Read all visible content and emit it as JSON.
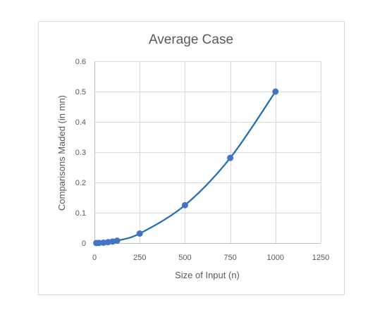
{
  "chart_data": {
    "type": "scatter",
    "title": "Average Case",
    "xlabel": "Size of Input (n)",
    "ylabel": "Comparisons Maded (in mn)",
    "xlim": [
      0,
      1250
    ],
    "ylim": [
      0,
      0.6
    ],
    "x_ticks": [
      "0",
      "250",
      "500",
      "750",
      "1000",
      "1250"
    ],
    "y_ticks": [
      "0",
      "0.1",
      "0.2",
      "0.3",
      "0.4",
      "0.5",
      "0.6"
    ],
    "x_tick_values": [
      0,
      250,
      500,
      750,
      1000,
      1250
    ],
    "y_tick_values": [
      0,
      0.1,
      0.2,
      0.3,
      0.4,
      0.5,
      0.6
    ],
    "vertical_grid": true,
    "horizontal_grid": true,
    "smoothed_line": true,
    "legend": "none",
    "series_color": "#1f6fb5",
    "marker_color": "#4472c4",
    "series": [
      {
        "x": [
          10,
          25,
          50,
          75,
          100,
          125,
          250,
          500,
          750,
          1000
        ],
        "y": [
          0.0001,
          0.0003,
          0.0012,
          0.0028,
          0.005,
          0.0078,
          0.0313,
          0.125,
          0.281,
          0.5
        ]
      }
    ]
  }
}
